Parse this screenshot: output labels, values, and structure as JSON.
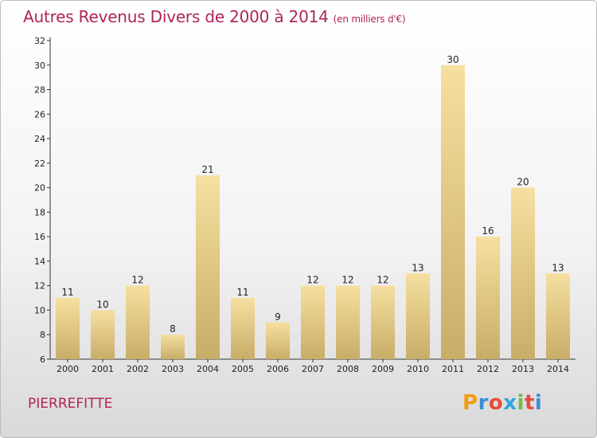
{
  "header": {
    "title": "Autres Revenus Divers de 2000 à 2014",
    "unit": "(en milliers d'€)"
  },
  "footer": {
    "place": "PIERREFITTE",
    "logo": "Proxiti",
    "logo_colors": [
      "#f39c12",
      "#3b8ed6",
      "#e74c3c",
      "#2ea6df",
      "#6fbe44",
      "#e74c3c",
      "#3b8ed6"
    ]
  },
  "colors": {
    "title": "#b0245a",
    "bar_light": "#f6dfa0",
    "bar_dark": "#c8ad68"
  },
  "chart_data": {
    "type": "bar",
    "categories": [
      "2000",
      "2001",
      "2002",
      "2003",
      "2004",
      "2005",
      "2006",
      "2007",
      "2008",
      "2009",
      "2010",
      "2011",
      "2012",
      "2013",
      "2014"
    ],
    "values": [
      11,
      10,
      12,
      8,
      21,
      11,
      9,
      12,
      12,
      12,
      13,
      30,
      16,
      20,
      13
    ],
    "ylim": [
      6,
      32
    ],
    "yticks": [
      6,
      8,
      10,
      12,
      14,
      16,
      18,
      20,
      22,
      24,
      26,
      28,
      30,
      32
    ],
    "grid": false,
    "legend": "none"
  }
}
